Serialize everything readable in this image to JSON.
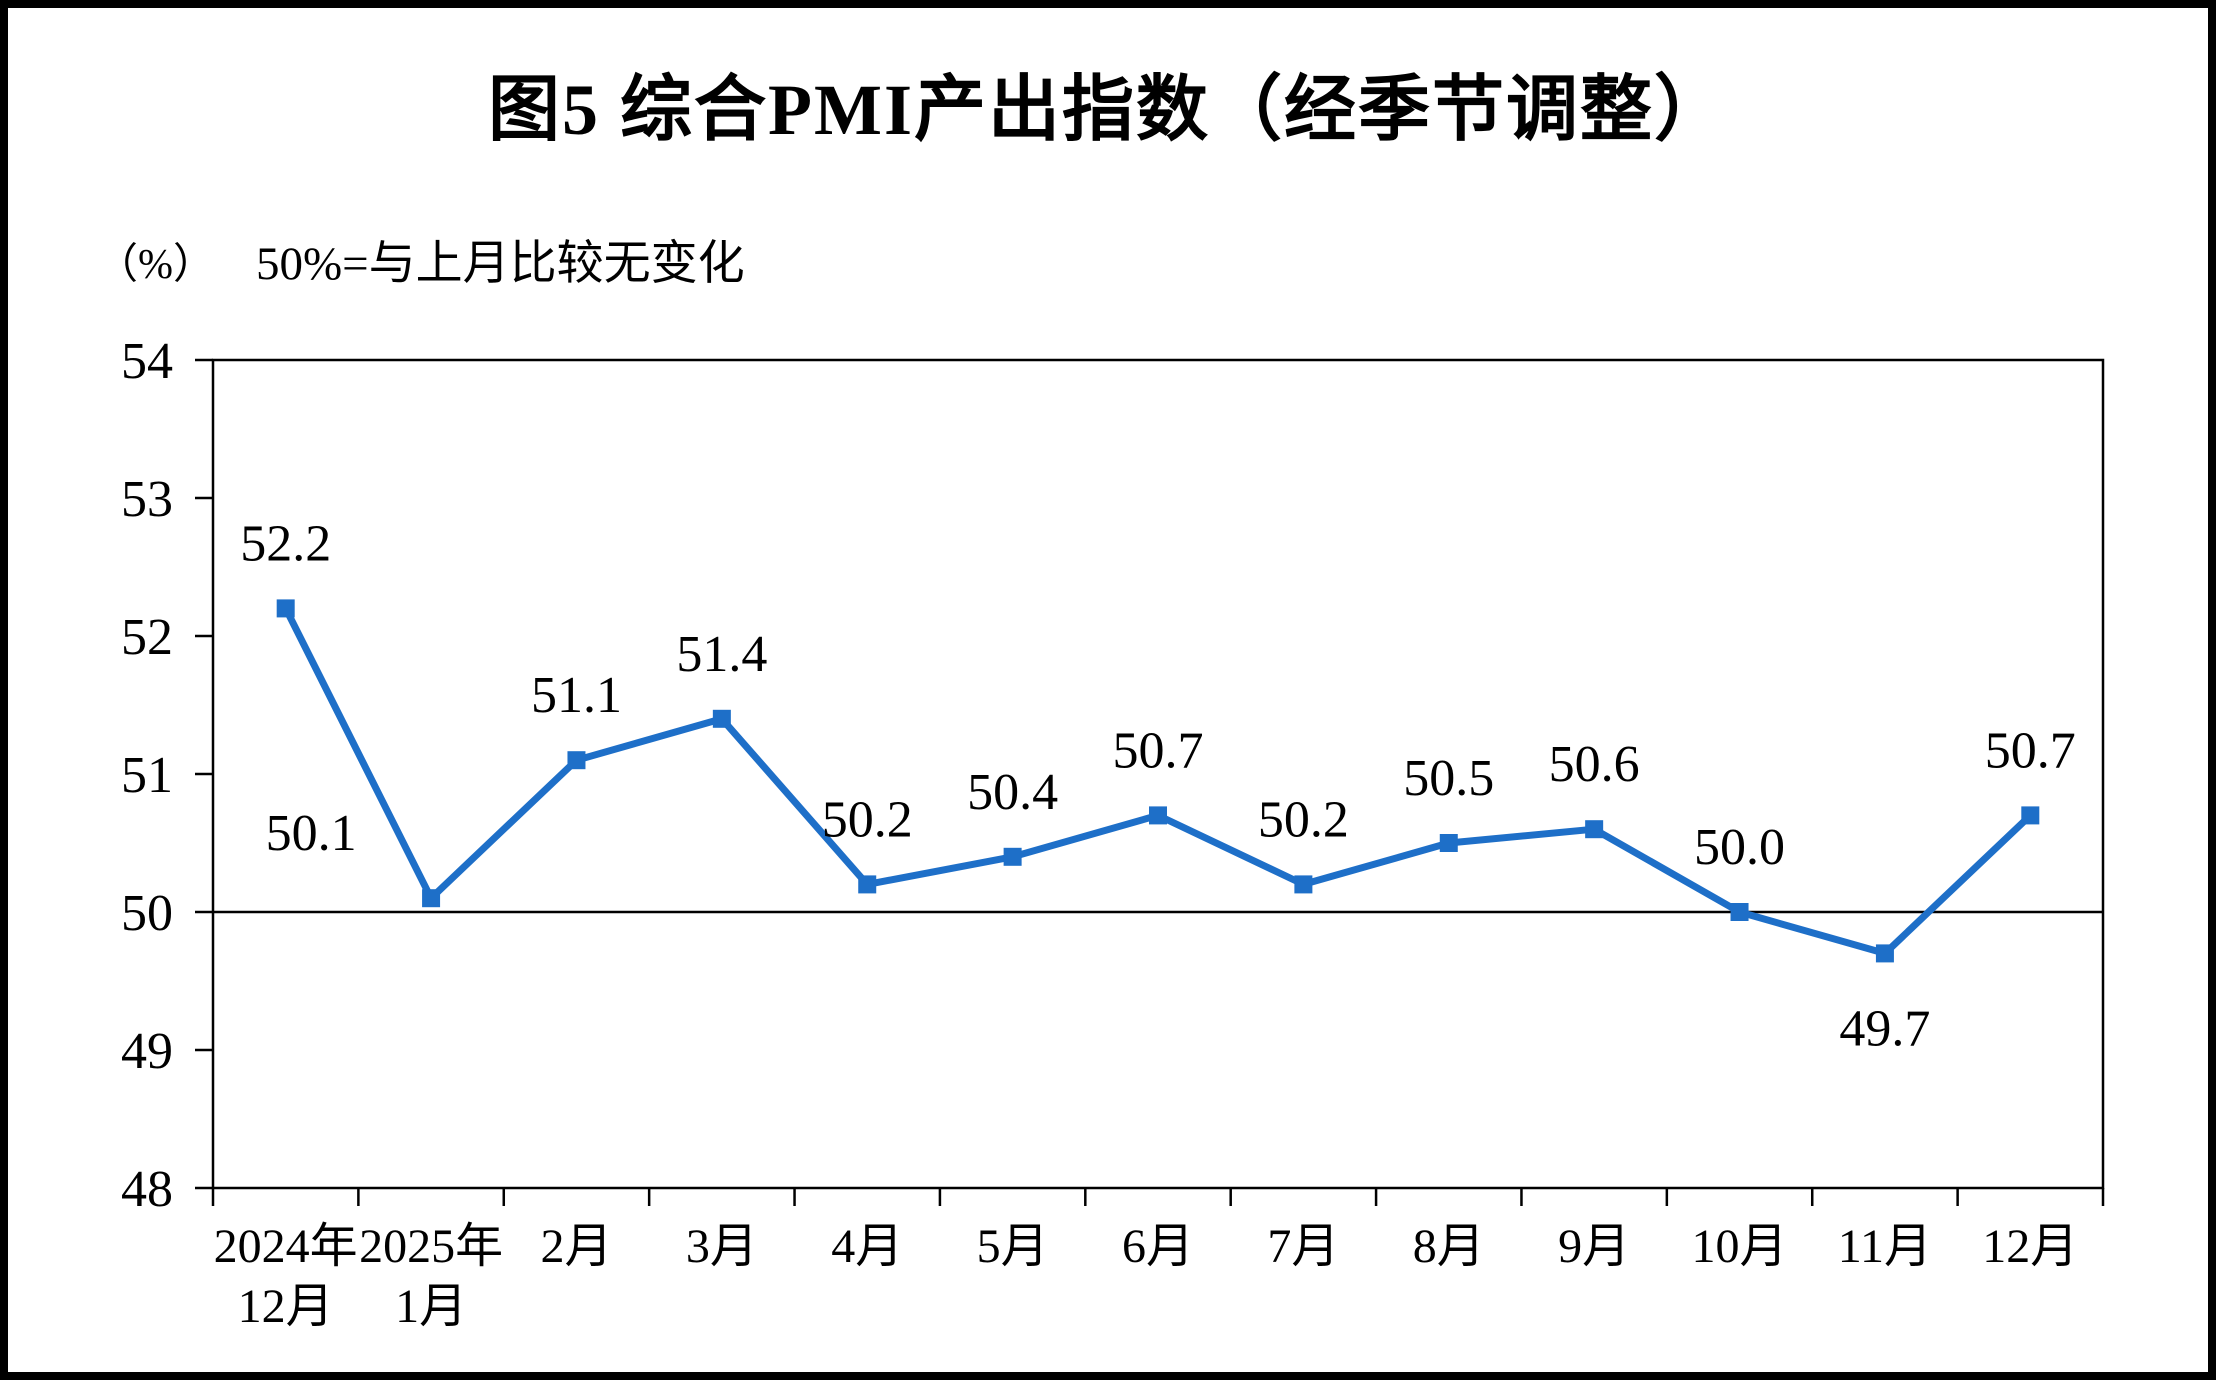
{
  "page": {
    "background": "#ffffff",
    "frame_color": "#000000"
  },
  "chart_data": {
    "type": "line",
    "title": "图5  综合PMI产出指数（经季节调整）",
    "unit_label": "（%）",
    "subtitle": "50%=与上月比较无变化",
    "categories": [
      "2024年\n12月",
      "2025年\n1月",
      "2月",
      "3月",
      "4月",
      "5月",
      "6月",
      "7月",
      "8月",
      "9月",
      "10月",
      "11月",
      "12月"
    ],
    "values": [
      52.2,
      50.1,
      51.1,
      51.4,
      50.2,
      50.4,
      50.7,
      50.2,
      50.5,
      50.6,
      50.0,
      49.7,
      50.7
    ],
    "ylim": [
      48,
      54
    ],
    "ytick_step": 1,
    "reference_line": 50,
    "grid": false,
    "legend": "none",
    "line_color": "#1e6fc8",
    "marker": "square",
    "axis_color": "#000000",
    "label_positions": [
      "above",
      "above-left",
      "above",
      "above",
      "above",
      "above",
      "above",
      "above",
      "above",
      "above",
      "above",
      "below",
      "above"
    ]
  }
}
